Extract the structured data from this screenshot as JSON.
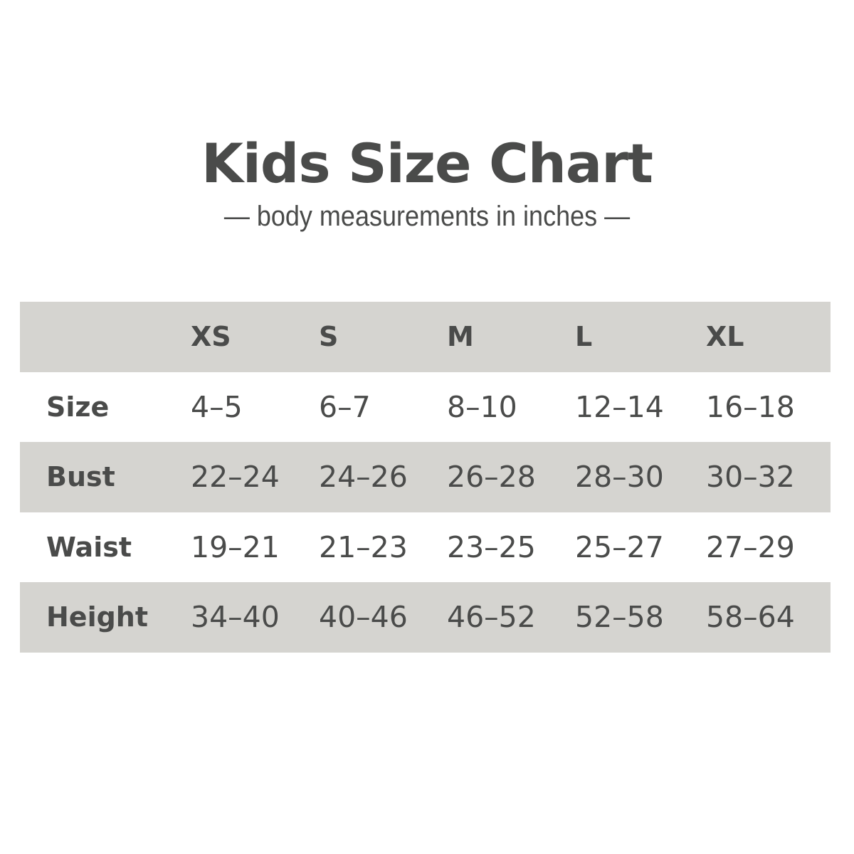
{
  "title": "Kids Size Chart",
  "subtitle": "— body measurements in inches —",
  "colors": {
    "band": "#d5d4d0",
    "text": "#4a4b4a",
    "background": "#ffffff"
  },
  "table": {
    "columns": [
      "XS",
      "S",
      "M",
      "L",
      "XL"
    ],
    "rows": [
      {
        "label": "Size",
        "values": [
          "4–5",
          "6–7",
          "8–10",
          "12–14",
          "16–18"
        ]
      },
      {
        "label": "Bust",
        "values": [
          "22–24",
          "24–26",
          "26–28",
          "28–30",
          "30–32"
        ]
      },
      {
        "label": "Waist",
        "values": [
          "19–21",
          "21–23",
          "23–25",
          "25–27",
          "27–29"
        ]
      },
      {
        "label": "Height",
        "values": [
          "34–40",
          "40–46",
          "46–52",
          "52–58",
          "58–64"
        ]
      }
    ]
  }
}
